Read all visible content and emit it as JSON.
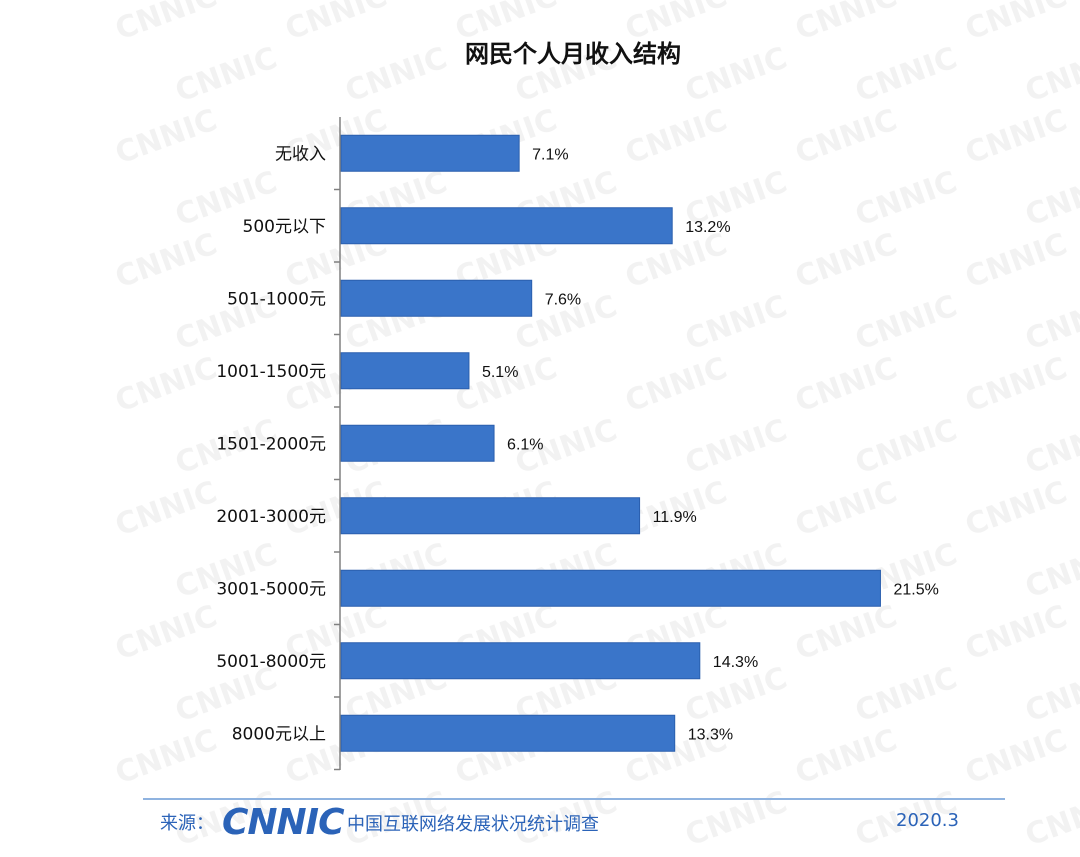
{
  "chart_data": {
    "type": "bar",
    "orientation": "horizontal",
    "title": "网民个人月收入结构",
    "categories": [
      "无收入",
      "500元以下",
      "501-1000元",
      "1001-1500元",
      "1501-2000元",
      "2001-3000元",
      "3001-5000元",
      "5001-8000元",
      "8000元以上"
    ],
    "values": [
      7.1,
      13.2,
      7.6,
      5.1,
      6.1,
      11.9,
      21.5,
      14.3,
      13.3
    ],
    "value_labels": [
      "7.1%",
      "13.2%",
      "7.6%",
      "5.1%",
      "6.1%",
      "11.9%",
      "21.5%",
      "14.3%",
      "13.3%"
    ],
    "unit": "%",
    "xlim": [
      0,
      22
    ],
    "grid": false,
    "bar_color": "#3a75c9"
  },
  "watermark_text": "CNNIC",
  "footer": {
    "source_label": "来源：",
    "logo_text": "CNNIC",
    "org_name": "中国互联网络发展状况统计调查",
    "date": "2020.3"
  },
  "colors": {
    "accent": "#2b63b8",
    "footer_line": "#8fb3e0"
  }
}
